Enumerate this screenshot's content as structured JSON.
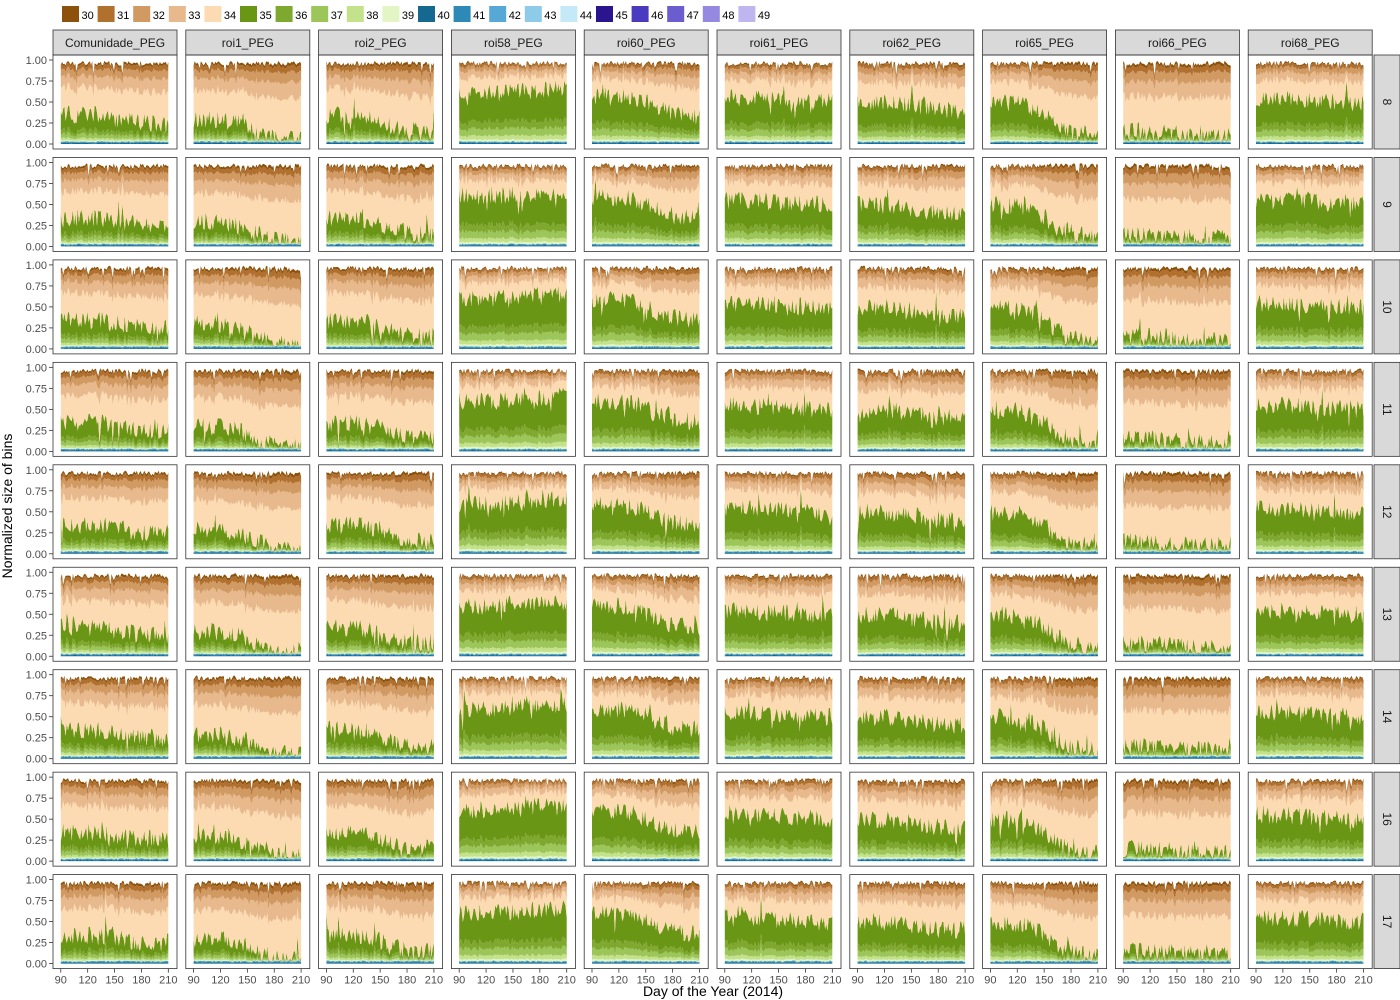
{
  "chart_data": {
    "type": "area",
    "subtype": "stacked-area-facet-grid",
    "xlabel": "Day of the Year (2014)",
    "ylabel": "Normalized size of bins",
    "xlim": [
      88,
      213
    ],
    "ylim": [
      0,
      1
    ],
    "x_ticks": [
      90,
      120,
      150,
      180,
      210
    ],
    "y_tick_labels": [
      "0.00",
      "0.25",
      "0.50",
      "0.75",
      "1.00"
    ],
    "y_ticks": [
      0,
      0.25,
      0.5,
      0.75,
      1.0
    ],
    "legend_position": "top",
    "grid": false,
    "legend": [
      {
        "name": "30",
        "color": "#8c510a"
      },
      {
        "name": "31",
        "color": "#b2702f"
      },
      {
        "name": "32",
        "color": "#d29a63"
      },
      {
        "name": "33",
        "color": "#e7b98c"
      },
      {
        "name": "34",
        "color": "#fddbb2"
      },
      {
        "name": "35",
        "color": "#6a9616"
      },
      {
        "name": "36",
        "color": "#7fa82e"
      },
      {
        "name": "37",
        "color": "#9cc55a"
      },
      {
        "name": "38",
        "color": "#c4e28a"
      },
      {
        "name": "39",
        "color": "#e2f5c4"
      },
      {
        "name": "40",
        "color": "#15688f"
      },
      {
        "name": "41",
        "color": "#2d8ab7"
      },
      {
        "name": "42",
        "color": "#56a9d4"
      },
      {
        "name": "43",
        "color": "#8ecbe9"
      },
      {
        "name": "44",
        "color": "#c6e9f8"
      },
      {
        "name": "45",
        "color": "#2a158f"
      },
      {
        "name": "46",
        "color": "#4a3ac0"
      },
      {
        "name": "47",
        "color": "#6b5cd0"
      },
      {
        "name": "48",
        "color": "#9488e0"
      },
      {
        "name": "49",
        "color": "#c0b6ef"
      }
    ],
    "column_facets": [
      "Comunidade_PEG",
      "roi1_PEG",
      "roi2_PEG",
      "roi58_PEG",
      "roi60_PEG",
      "roi61_PEG",
      "roi62_PEG",
      "roi65_PEG",
      "roi66_PEG",
      "roi68_PEG"
    ],
    "row_facets": [
      "8",
      "9",
      "10",
      "11",
      "12",
      "13",
      "14",
      "16",
      "17"
    ],
    "approx_green_top_by_column": [
      {
        "facet": "Comunidade_PEG",
        "day_90": 0.35,
        "day_210": 0.25
      },
      {
        "facet": "roi1_PEG",
        "day_90": 0.3,
        "day_210": 0.05
      },
      {
        "facet": "roi2_PEG",
        "day_90": 0.35,
        "day_210": 0.15
      },
      {
        "facet": "roi58_PEG",
        "day_90": 0.6,
        "day_210": 0.65
      },
      {
        "facet": "roi60_PEG",
        "day_90": 0.6,
        "day_210": 0.35
      },
      {
        "facet": "roi61_PEG",
        "day_90": 0.55,
        "day_210": 0.5
      },
      {
        "facet": "roi62_PEG",
        "day_90": 0.5,
        "day_210": 0.4
      },
      {
        "facet": "roi65_PEG",
        "day_90": 0.5,
        "day_210": 0.1
      },
      {
        "facet": "roi66_PEG",
        "day_90": 0.15,
        "day_210": 0.1
      },
      {
        "facet": "roi68_PEG",
        "day_90": 0.55,
        "day_210": 0.5
      }
    ]
  }
}
